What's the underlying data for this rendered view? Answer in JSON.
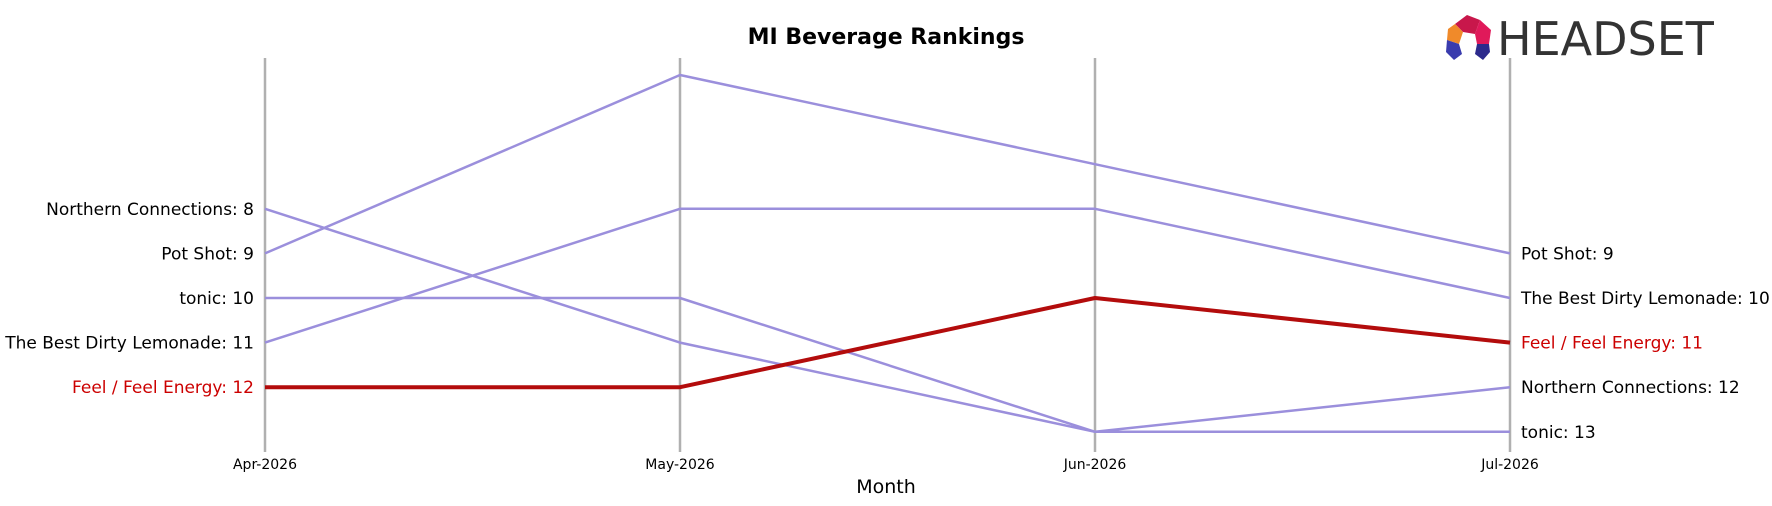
{
  "chart_data": {
    "type": "line",
    "title": "MI Beverage Rankings",
    "xlabel": "Month",
    "ylabel": "",
    "x": [
      "Apr-2026",
      "May-2026",
      "Jun-2026",
      "Jul-2026"
    ],
    "y_inverted": true,
    "ylim": [
      14,
      5
    ],
    "grid": "vertical lines at each month",
    "series": [
      {
        "name": "Northern Connections",
        "values": [
          8,
          11,
          13,
          12
        ],
        "highlight": false
      },
      {
        "name": "Pot Shot",
        "values": [
          9,
          5,
          7,
          9
        ],
        "highlight": false
      },
      {
        "name": "tonic",
        "values": [
          10,
          10,
          13,
          13
        ],
        "highlight": false
      },
      {
        "name": "The Best Dirty Lemonade",
        "values": [
          11,
          8,
          8,
          10
        ],
        "highlight": false
      },
      {
        "name": "Feel / Feel Energy",
        "values": [
          12,
          12,
          10,
          11
        ],
        "highlight": true
      }
    ],
    "left_labels": [
      {
        "text": "Northern Connections: 8",
        "rank": 8,
        "highlight": false
      },
      {
        "text": "Pot Shot: 9",
        "rank": 9,
        "highlight": false
      },
      {
        "text": "tonic: 10",
        "rank": 10,
        "highlight": false
      },
      {
        "text": "The Best Dirty Lemonade: 11",
        "rank": 11,
        "highlight": false
      },
      {
        "text": "Feel / Feel Energy: 12",
        "rank": 12,
        "highlight": true
      }
    ],
    "right_labels": [
      {
        "text": "Pot Shot: 9",
        "rank": 9,
        "highlight": false
      },
      {
        "text": "The Best Dirty Lemonade: 10",
        "rank": 10,
        "highlight": false
      },
      {
        "text": "Feel / Feel Energy: 11",
        "rank": 11,
        "highlight": true
      },
      {
        "text": "Northern Connections: 12",
        "rank": 12,
        "highlight": false
      },
      {
        "text": "tonic: 13",
        "rank": 13,
        "highlight": false
      }
    ],
    "colors": {
      "normal": "#9b8fdc",
      "highlight": "#b30c0c",
      "label_highlight": "#cc0000",
      "grid": "#b0b0b0"
    }
  },
  "logo": {
    "text": "HEADSET",
    "icon": "headset-logo-icon"
  }
}
